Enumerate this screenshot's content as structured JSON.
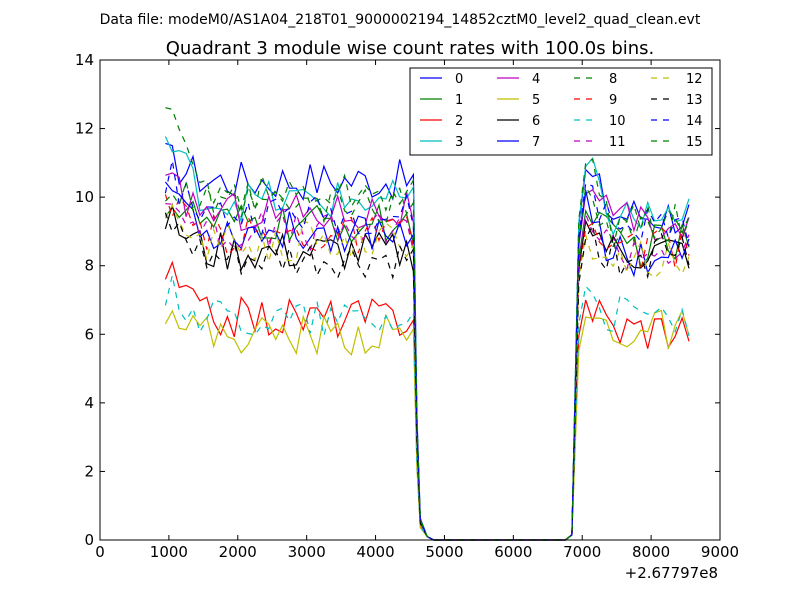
{
  "chart_data": {
    "type": "line",
    "suptitle": "Data file: modeM0/AS1A04_218T01_9000002194_14852cztM0_level2_quad_clean.evt",
    "title": "Quadrant 3 module wise count rates with 100.0s bins.",
    "xlabel": "",
    "ylabel": "",
    "x_offset_label": "+2.67797e8",
    "xlim": [
      0,
      9000
    ],
    "ylim": [
      0,
      14
    ],
    "xticks": [
      0,
      1000,
      2000,
      3000,
      4000,
      5000,
      6000,
      7000,
      8000,
      9000
    ],
    "yticks": [
      0,
      2,
      4,
      6,
      8,
      10,
      12,
      14
    ],
    "legend_position": "top-right",
    "legend_columns": 4,
    "segments": [
      {
        "x_start": 950,
        "x_end": 4550,
        "n_points": 37
      },
      {
        "x_start": 4550,
        "x_end": 4750,
        "n_points": 3,
        "drop": true
      },
      {
        "x_start": 4750,
        "x_end": 6850,
        "n_points": 22,
        "zero": true
      },
      {
        "x_start": 6850,
        "x_end": 7050,
        "n_points": 3,
        "rise": true
      },
      {
        "x_start": 7050,
        "x_end": 8550,
        "n_points": 16
      }
    ],
    "series": [
      {
        "name": "0",
        "color": "#0000ff",
        "dash": "solid",
        "level1": 10.5,
        "level2": 9.5,
        "start": 11.1,
        "peak": 10.8
      },
      {
        "name": "1",
        "color": "#008000",
        "dash": "solid",
        "level1": 9.2,
        "level2": 8.6,
        "start": 9.9,
        "peak": 9.6
      },
      {
        "name": "2",
        "color": "#ff0000",
        "dash": "solid",
        "level1": 6.5,
        "level2": 6.2,
        "start": 7.8,
        "peak": 7.0
      },
      {
        "name": "3",
        "color": "#00bfbf",
        "dash": "solid",
        "level1": 9.9,
        "level2": 9.4,
        "start": 11.7,
        "peak": 10.9
      },
      {
        "name": "4",
        "color": "#bf00bf",
        "dash": "solid",
        "level1": 9.6,
        "level2": 9.2,
        "start": 10.3,
        "peak": 10.1
      },
      {
        "name": "5",
        "color": "#bfbf00",
        "dash": "solid",
        "level1": 6.0,
        "level2": 6.1,
        "start": 6.9,
        "peak": 6.5
      },
      {
        "name": "6",
        "color": "#000000",
        "dash": "solid",
        "level1": 8.4,
        "level2": 8.4,
        "start": 9.4,
        "peak": 9.3
      },
      {
        "name": "7",
        "color": "#0000ff",
        "dash": "solid",
        "level1": 9.0,
        "level2": 8.3,
        "start": 10.5,
        "peak": 10.2
      },
      {
        "name": "8",
        "color": "#008000",
        "dash": "dash",
        "level1": 10.1,
        "level2": 9.2,
        "start": 12.4,
        "peak": 11.0
      },
      {
        "name": "9",
        "color": "#ff0000",
        "dash": "dash",
        "level1": 8.9,
        "level2": 8.5,
        "start": 9.6,
        "peak": 9.1
      },
      {
        "name": "10",
        "color": "#00bfbf",
        "dash": "dash",
        "level1": 6.5,
        "level2": 6.5,
        "start": 7.3,
        "peak": 7.4
      },
      {
        "name": "11",
        "color": "#bf00bf",
        "dash": "dash",
        "level1": 9.0,
        "level2": 8.5,
        "start": 10.0,
        "peak": 9.5
      },
      {
        "name": "12",
        "color": "#bfbf00",
        "dash": "dash",
        "level1": 8.7,
        "level2": 8.2,
        "start": 9.3,
        "peak": 8.9
      },
      {
        "name": "13",
        "color": "#000000",
        "dash": "dash",
        "level1": 8.1,
        "level2": 8.3,
        "start": 9.2,
        "peak": 8.8
      },
      {
        "name": "14",
        "color": "#0000ff",
        "dash": "dash",
        "level1": 9.5,
        "level2": 9.2,
        "start": 10.7,
        "peak": 10.4
      },
      {
        "name": "15",
        "color": "#008000",
        "dash": "dash",
        "level1": 9.7,
        "level2": 9.1,
        "start": 10.2,
        "peak": 10.3
      }
    ]
  }
}
